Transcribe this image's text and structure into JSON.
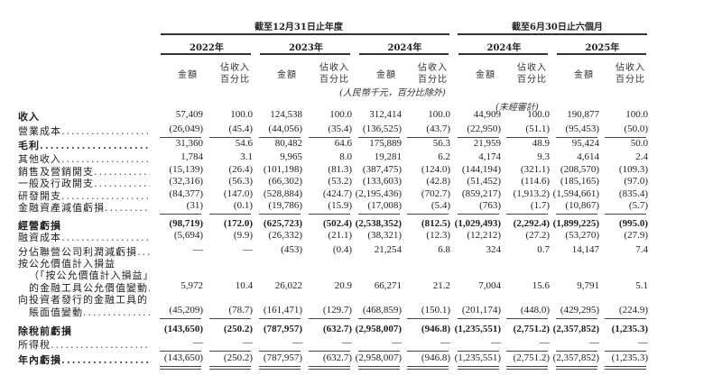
{
  "header": {
    "group_annual": "截至12月31日止年度",
    "group_interim": "截至6月30日止六個月",
    "years": [
      "2022年",
      "2023年",
      "2024年",
      "2024年",
      "2025年"
    ],
    "amount_label": "金額",
    "pct_label_line1": "佔收入",
    "pct_label_line2": "百分比",
    "unit_note": "(人民幣千元，百分比除外)",
    "unaudited_note": "(未經審計)"
  },
  "rows": [
    {
      "label": [
        "收入"
      ],
      "label_bold": true,
      "values_bold": false,
      "values": [
        "57,409",
        "100.0",
        "124,538",
        "100.0",
        "312,414",
        "100.0",
        "44,909",
        "100.0",
        "190,877",
        "100.0"
      ]
    },
    {
      "label": [
        "營業成本"
      ],
      "leader": true,
      "values": [
        "(26,049)",
        "(45.4)",
        "(44,056)",
        "(35.4)",
        "(136,525)",
        "(43.7)",
        "(22,950)",
        "(51.1)",
        "(95,453)",
        "(50.0)"
      ],
      "rule_after": "single"
    },
    {
      "label": [
        "毛利"
      ],
      "label_bold": true,
      "leader": true,
      "values": [
        "31,360",
        "54.6",
        "80,482",
        "64.6",
        "175,889",
        "56.3",
        "21,959",
        "48.9",
        "95,424",
        "50.0"
      ]
    },
    {
      "label": [
        "其他收入"
      ],
      "leader": true,
      "values": [
        "1,784",
        "3.1",
        "9,965",
        "8.0",
        "19,281",
        "6.2",
        "4,174",
        "9.3",
        "4,614",
        "2.4"
      ]
    },
    {
      "label": [
        "銷售及營銷開支"
      ],
      "leader": true,
      "values": [
        "(15,139)",
        "(26.4)",
        "(101,198)",
        "(81.3)",
        "(387,475)",
        "(124.0)",
        "(144,194)",
        "(321.1)",
        "(208,570)",
        "(109.3)"
      ]
    },
    {
      "label": [
        "一般及行政開支"
      ],
      "leader": true,
      "values": [
        "(32,316)",
        "(56.3)",
        "(66,302)",
        "(53.2)",
        "(133,603)",
        "(42.8)",
        "(51,452)",
        "(114.6)",
        "(185,165)",
        "(97.0)"
      ]
    },
    {
      "label": [
        "研發開支"
      ],
      "leader": true,
      "values": [
        "(84,377)",
        "(147.0)",
        "(528,884)",
        "(424.7)",
        "(2,195,436)",
        "(702.7)",
        "(859,217)",
        "(1,913.2)",
        "(1,594,661)",
        "(835.4)"
      ]
    },
    {
      "label": [
        "金融資產減值虧損"
      ],
      "leader": true,
      "values": [
        "(31)",
        "(0.1)",
        "(19,786)",
        "(15.9)",
        "(17,008)",
        "(5.4)",
        "(763)",
        "(1.7)",
        "(10,867)",
        "(5.7)"
      ],
      "rule_after": "single"
    },
    {
      "label": [
        "經營虧損"
      ],
      "label_bold": true,
      "values_bold": true,
      "values": [
        "(98,719)",
        "(172.0)",
        "(625,723)",
        "(502.4)",
        "(2,538,352)",
        "(812.5)",
        "(1,029,493)",
        "(2,292.4)",
        "(1,899,225)",
        "(995.0)"
      ]
    },
    {
      "label": [
        "融資成本"
      ],
      "leader": true,
      "values": [
        "(5,694)",
        "(9.9)",
        "(26,332)",
        "(21.1)",
        "(38,321)",
        "(12.3)",
        "(12,212)",
        "(27.2)",
        "(53,270)",
        "(27.9)"
      ]
    },
    {
      "label": [
        "分佔聯營公司利潤減虧損"
      ],
      "leader": true,
      "values": [
        "—",
        "—",
        "(453)",
        "(0.4)",
        "21,254",
        "6.8",
        "324",
        "0.7",
        "14,147",
        "7.4"
      ]
    },
    {
      "label": [
        "按公允價值計入損益",
        "（「按公允價值計入損益」）計量",
        "的金融工具公允價值變動"
      ],
      "leader": true,
      "values": [
        "5,972",
        "10.4",
        "26,022",
        "20.9",
        "66,271",
        "21.2",
        "7,004",
        "15.6",
        "9,791",
        "5.1"
      ]
    },
    {
      "label": [
        "向投資者發行的金融工具的",
        "賬面值變動"
      ],
      "leader": true,
      "values": [
        "(45,209)",
        "(78.7)",
        "(161,471)",
        "(129.7)",
        "(468,859)",
        "(150.1)",
        "(201,174)",
        "(448.0)",
        "(429,295)",
        "(224.9)"
      ],
      "rule_after": "single"
    },
    {
      "label": [
        "除稅前虧損"
      ],
      "label_bold": true,
      "values_bold": true,
      "values": [
        "(143,650)",
        "(250.2)",
        "(787,957)",
        "(632.7)",
        "(2,958,007)",
        "(946.8)",
        "(1,235,551)",
        "(2,751.2)",
        "(2,357,852)",
        "(1,235.3)"
      ]
    },
    {
      "label": [
        "所得稅"
      ],
      "leader": true,
      "values": [
        "—",
        "—",
        "—",
        "—",
        "—",
        "—",
        "—",
        "—",
        "—",
        "—"
      ],
      "rule_after": "single"
    },
    {
      "label": [
        "年內虧損"
      ],
      "label_bold": true,
      "leader": true,
      "values": [
        "(143,650)",
        "(250.2)",
        "(787,957)",
        "(632.7)",
        "(2,958,007)",
        "(946.8)",
        "(1,235,551)",
        "(2,751.2)",
        "(2,357,852)",
        "(1,235.3)"
      ],
      "rule_after": "double"
    }
  ]
}
